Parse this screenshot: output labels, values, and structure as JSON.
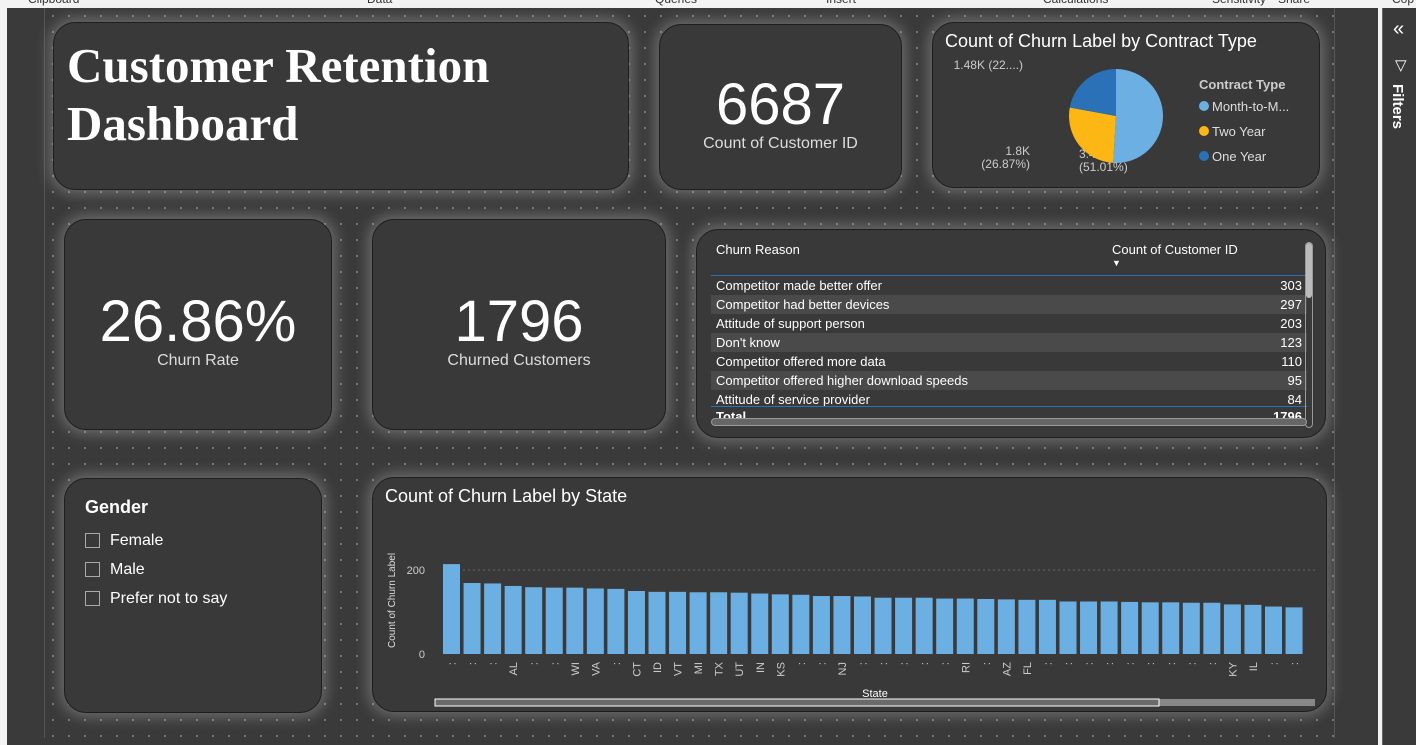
{
  "ribbon": [
    "Clipboard",
    "Data",
    "Queries",
    "Insert",
    "Calculations",
    "Sensitivity",
    "Share",
    "Cop"
  ],
  "header": {
    "title_line1": "Customer Retention",
    "title_line2": "Dashboard"
  },
  "kpis": {
    "customers": {
      "value": "6687",
      "label": "Count of Customer ID"
    },
    "churn_rate": {
      "value": "26.86%",
      "label": "Churn Rate"
    },
    "churned": {
      "value": "1796",
      "label": "Churned Customers"
    }
  },
  "pie": {
    "title": "Count of Churn Label by Contract Type",
    "legend_title": "Contract Type",
    "slices": [
      {
        "name": "Month-to-M...",
        "value": 3410,
        "label1": "3.41K",
        "label2": "(51.01%)",
        "color": "#6cb0e3"
      },
      {
        "name": "Two Year",
        "value": 1800,
        "label1": "1.8K",
        "label2": "(26.87%)",
        "color": "#fcb714"
      },
      {
        "name": "One Year",
        "value": 1480,
        "label1": "1.48K (22....)",
        "label2": "",
        "color": "#2a71b8"
      }
    ]
  },
  "table": {
    "headers": [
      "Churn Reason",
      "Count of Customer ID"
    ],
    "rows": [
      [
        "Competitor made better offer",
        "303"
      ],
      [
        "Competitor had better devices",
        "297"
      ],
      [
        "Attitude of support person",
        "203"
      ],
      [
        "Don't know",
        "123"
      ],
      [
        "Competitor offered more data",
        "110"
      ],
      [
        "Competitor offered higher download speeds",
        "95"
      ],
      [
        "Attitude of service provider",
        "84"
      ]
    ],
    "total": [
      "Total",
      "1796"
    ]
  },
  "slicer": {
    "title": "Gender",
    "options": [
      "Female",
      "Male",
      "Prefer not to say"
    ]
  },
  "filters": {
    "label": "Filters"
  },
  "chart_data": {
    "type": "bar",
    "title": "Count of Churn Label by State",
    "xlabel": "State",
    "ylabel": "Count of Churn Label",
    "yticks": [
      0,
      200
    ],
    "ylim": [
      0,
      230
    ],
    "color": "#6cb0e3",
    "categories": [
      ":",
      ":",
      ":",
      "AL",
      ":",
      ":",
      "WI",
      "VA",
      ":",
      "CT",
      "ID",
      "VT",
      "MI",
      "TX",
      "UT",
      "IN",
      "KS",
      ":",
      ":",
      "NJ",
      ":",
      ":",
      ":",
      ":",
      ":",
      "RI",
      ":",
      "AZ",
      "FL",
      ":",
      ":",
      ":",
      ":",
      ":",
      ":",
      ":",
      ":",
      ":",
      "KY",
      "IL",
      ":",
      ":"
    ],
    "values": [
      214,
      169,
      168,
      162,
      159,
      158,
      158,
      156,
      155,
      150,
      148,
      148,
      147,
      147,
      146,
      144,
      142,
      141,
      138,
      138,
      137,
      134,
      134,
      134,
      132,
      132,
      131,
      130,
      129,
      129,
      125,
      125,
      125,
      124,
      123,
      123,
      122,
      122,
      118,
      117,
      113,
      111
    ]
  }
}
